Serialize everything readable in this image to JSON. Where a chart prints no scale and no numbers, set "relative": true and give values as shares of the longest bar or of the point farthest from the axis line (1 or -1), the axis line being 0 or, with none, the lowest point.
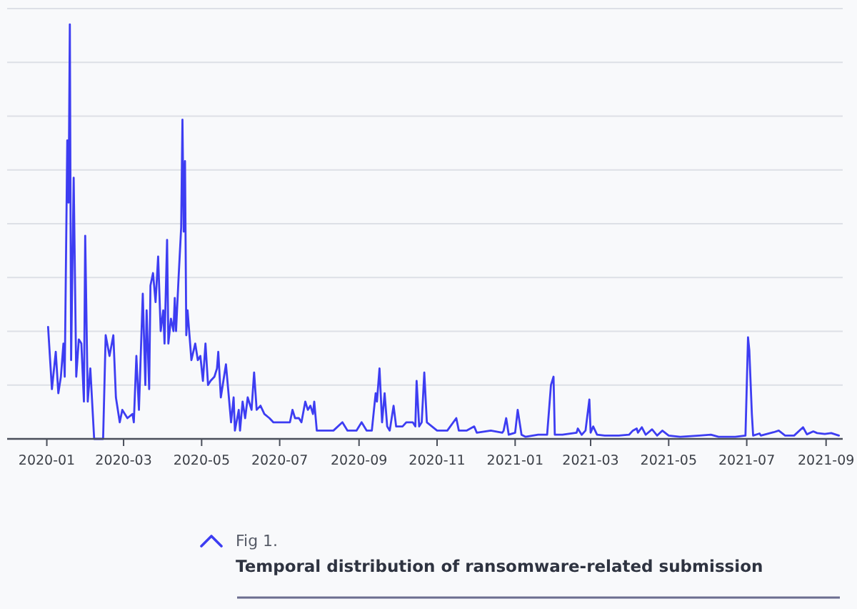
{
  "chart_data": {
    "type": "line",
    "title": "Temporal distribution of ransomware-related submission",
    "annotations": [
      "Fig 1."
    ],
    "relative": true,
    "grid": "y",
    "marker": "none",
    "line_style": "solid",
    "xlim": [
      "2019-12-01",
      "2021-09-14"
    ],
    "xticks": [
      "2020-01",
      "2020-03",
      "2020-05",
      "2020-07",
      "2020-09",
      "2020-11",
      "2021-01",
      "2021-03",
      "2021-05",
      "2021-07",
      "2021-09"
    ],
    "x": [
      "2020-01-02",
      "2020-01-05",
      "2020-01-08",
      "2020-01-10",
      "2020-01-12",
      "2020-01-14",
      "2020-01-15",
      "2020-01-17",
      "2020-01-18",
      "2020-01-19",
      "2020-01-20",
      "2020-01-22",
      "2020-01-24",
      "2020-01-26",
      "2020-01-28",
      "2020-01-30",
      "2020-01-31",
      "2020-02-02",
      "2020-02-04",
      "2020-02-07",
      "2020-02-14",
      "2020-02-16",
      "2020-02-19",
      "2020-02-22",
      "2020-02-24",
      "2020-02-27",
      "2020-02-29",
      "2020-03-04",
      "2020-03-08",
      "2020-03-09",
      "2020-03-11",
      "2020-03-13",
      "2020-03-16",
      "2020-03-18",
      "2020-03-19",
      "2020-03-21",
      "2020-03-22",
      "2020-03-24",
      "2020-03-26",
      "2020-03-28",
      "2020-03-30",
      "2020-04-01",
      "2020-04-02",
      "2020-04-04",
      "2020-04-05",
      "2020-04-07",
      "2020-04-09",
      "2020-04-10",
      "2020-04-11",
      "2020-04-13",
      "2020-04-15",
      "2020-04-16",
      "2020-04-17",
      "2020-04-18",
      "2020-04-19",
      "2020-04-20",
      "2020-04-23",
      "2020-04-26",
      "2020-04-28",
      "2020-04-30",
      "2020-05-02",
      "2020-05-04",
      "2020-05-06",
      "2020-05-08",
      "2020-05-11",
      "2020-05-13",
      "2020-05-14",
      "2020-05-16",
      "2020-05-18",
      "2020-05-20",
      "2020-05-22",
      "2020-05-24",
      "2020-05-26",
      "2020-05-27",
      "2020-05-30",
      "2020-05-31",
      "2020-06-02",
      "2020-06-04",
      "2020-06-06",
      "2020-06-09",
      "2020-06-11",
      "2020-06-13",
      "2020-06-16",
      "2020-06-19",
      "2020-06-23",
      "2020-06-26",
      "2020-07-01",
      "2020-07-09",
      "2020-07-11",
      "2020-07-13",
      "2020-07-16",
      "2020-07-18",
      "2020-07-21",
      "2020-07-23",
      "2020-07-25",
      "2020-07-27",
      "2020-07-28",
      "2020-07-30",
      "2020-08-04",
      "2020-08-08",
      "2020-08-12",
      "2020-08-19",
      "2020-08-23",
      "2020-08-30",
      "2020-09-03",
      "2020-09-07",
      "2020-09-11",
      "2020-09-14",
      "2020-09-15",
      "2020-09-17",
      "2020-09-19",
      "2020-09-21",
      "2020-09-23",
      "2020-09-25",
      "2020-09-28",
      "2020-09-30",
      "2020-10-05",
      "2020-10-08",
      "2020-10-13",
      "2020-10-15",
      "2020-10-16",
      "2020-10-18",
      "2020-10-20",
      "2020-10-22",
      "2020-10-24",
      "2020-10-28",
      "2020-11-01",
      "2020-11-09",
      "2020-11-16",
      "2020-11-18",
      "2020-11-24",
      "2020-11-30",
      "2020-12-02",
      "2020-12-13",
      "2020-12-22",
      "2020-12-23",
      "2020-12-25",
      "2020-12-27",
      "2021-01-01",
      "2021-01-03",
      "2021-01-06",
      "2021-01-09",
      "2021-01-19",
      "2021-01-26",
      "2021-01-29",
      "2021-01-31",
      "2021-02-01",
      "2021-02-07",
      "2021-02-18",
      "2021-02-19",
      "2021-02-22",
      "2021-02-25",
      "2021-02-28",
      "2021-03-01",
      "2021-03-03",
      "2021-03-06",
      "2021-03-12",
      "2021-03-23",
      "2021-03-31",
      "2021-04-03",
      "2021-04-06",
      "2021-04-07",
      "2021-04-10",
      "2021-04-13",
      "2021-04-18",
      "2021-04-22",
      "2021-04-26",
      "2021-05-01",
      "2021-05-10",
      "2021-05-25",
      "2021-06-03",
      "2021-06-09",
      "2021-06-22",
      "2021-06-30",
      "2021-07-02",
      "2021-07-03",
      "2021-07-05",
      "2021-07-06",
      "2021-07-11",
      "2021-07-12",
      "2021-07-22",
      "2021-07-26",
      "2021-07-31",
      "2021-08-07",
      "2021-08-14",
      "2021-08-17",
      "2021-08-22",
      "2021-08-25",
      "2021-08-31",
      "2021-09-05",
      "2021-09-11"
    ],
    "series": [
      {
        "color": "#3d3df2",
        "values": [
          0.27,
          0.12,
          0.21,
          0.11,
          0.15,
          0.23,
          0.15,
          0.72,
          0.57,
          1,
          0.19,
          0.63,
          0.15,
          0.24,
          0.23,
          0.09,
          0.49,
          0.09,
          0.17,
          0,
          0,
          0.25,
          0.2,
          0.25,
          0.1,
          0.04,
          0.07,
          0.05,
          0.06,
          0.04,
          0.2,
          0.07,
          0.35,
          0.13,
          0.31,
          0.12,
          0.37,
          0.4,
          0.33,
          0.44,
          0.26,
          0.31,
          0.23,
          0.48,
          0.23,
          0.29,
          0.26,
          0.34,
          0.26,
          0.39,
          0.51,
          0.77,
          0.5,
          0.67,
          0.25,
          0.31,
          0.19,
          0.23,
          0.19,
          0.2,
          0.14,
          0.23,
          0.13,
          0.14,
          0.15,
          0.17,
          0.21,
          0.1,
          0.14,
          0.18,
          0.11,
          0.04,
          0.1,
          0.02,
          0.07,
          0.02,
          0.09,
          0.05,
          0.1,
          0.07,
          0.16,
          0.07,
          0.08,
          0.06,
          0.05,
          0.04,
          0.04,
          0.04,
          0.07,
          0.05,
          0.05,
          0.04,
          0.09,
          0.07,
          0.08,
          0.06,
          0.09,
          0.02,
          0.02,
          0.02,
          0.02,
          0.04,
          0.02,
          0.02,
          0.04,
          0.02,
          0.02,
          0.11,
          0.09,
          0.17,
          0.04,
          0.11,
          0.03,
          0.02,
          0.08,
          0.03,
          0.03,
          0.04,
          0.04,
          0.03,
          0.14,
          0.03,
          0.04,
          0.16,
          0.04,
          0.03,
          0.02,
          0.02,
          0.05,
          0.02,
          0.02,
          0.03,
          0.015,
          0.02,
          0.015,
          0.02,
          0.05,
          0.01,
          0.015,
          0.07,
          0.01,
          0.005,
          0.01,
          0.01,
          0.13,
          0.15,
          0.01,
          0.01,
          0.015,
          0.025,
          0.01,
          0.02,
          0.095,
          0.015,
          0.03,
          0.01,
          0.008,
          0.008,
          0.01,
          0.02,
          0.025,
          0.015,
          0.028,
          0.01,
          0.023,
          0.008,
          0.02,
          0.008,
          0.005,
          0.008,
          0.01,
          0.005,
          0.005,
          0.008,
          0.245,
          0.214,
          0.06,
          0.008,
          0.013,
          0.008,
          0.016,
          0.02,
          0.008,
          0.008,
          0.028,
          0.011,
          0.018,
          0.014,
          0.012,
          0.014,
          0.008
        ]
      }
    ]
  }
}
